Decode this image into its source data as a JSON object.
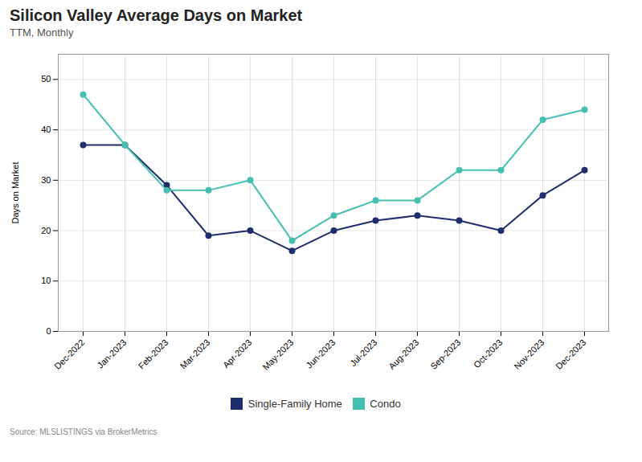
{
  "chart_data": {
    "type": "line",
    "title": "Silicon Valley Average Days on Market",
    "subtitle": "TTM, Monthly",
    "source": "Source:  MLSLISTINGS via BrokerMetrics",
    "ylabel": "Days on Market",
    "categories": [
      "Dec-2022",
      "Jan-2023",
      "Feb-2023",
      "Mar-2023",
      "Apr-2023",
      "May-2023",
      "Jun-2023",
      "Jul-2023",
      "Aug-2023",
      "Sep-2023",
      "Oct-2023",
      "Nov-2023",
      "Dec-2023"
    ],
    "series": [
      {
        "name": "Single-Family Home",
        "color": "#1e2d6b",
        "marker": "circle",
        "values": [
          37,
          37,
          29,
          19,
          20,
          16,
          20,
          22,
          23,
          22,
          20,
          27,
          32
        ]
      },
      {
        "name": "Condo",
        "color": "#45bfb0",
        "marker": "circle",
        "values": [
          47,
          37,
          28,
          28,
          30,
          18,
          23,
          26,
          26,
          32,
          32,
          42,
          44
        ]
      }
    ],
    "ylim": [
      0,
      55
    ],
    "yticks": [
      0,
      10,
      20,
      30,
      40,
      50
    ],
    "grid": true,
    "legend": "bottom"
  }
}
